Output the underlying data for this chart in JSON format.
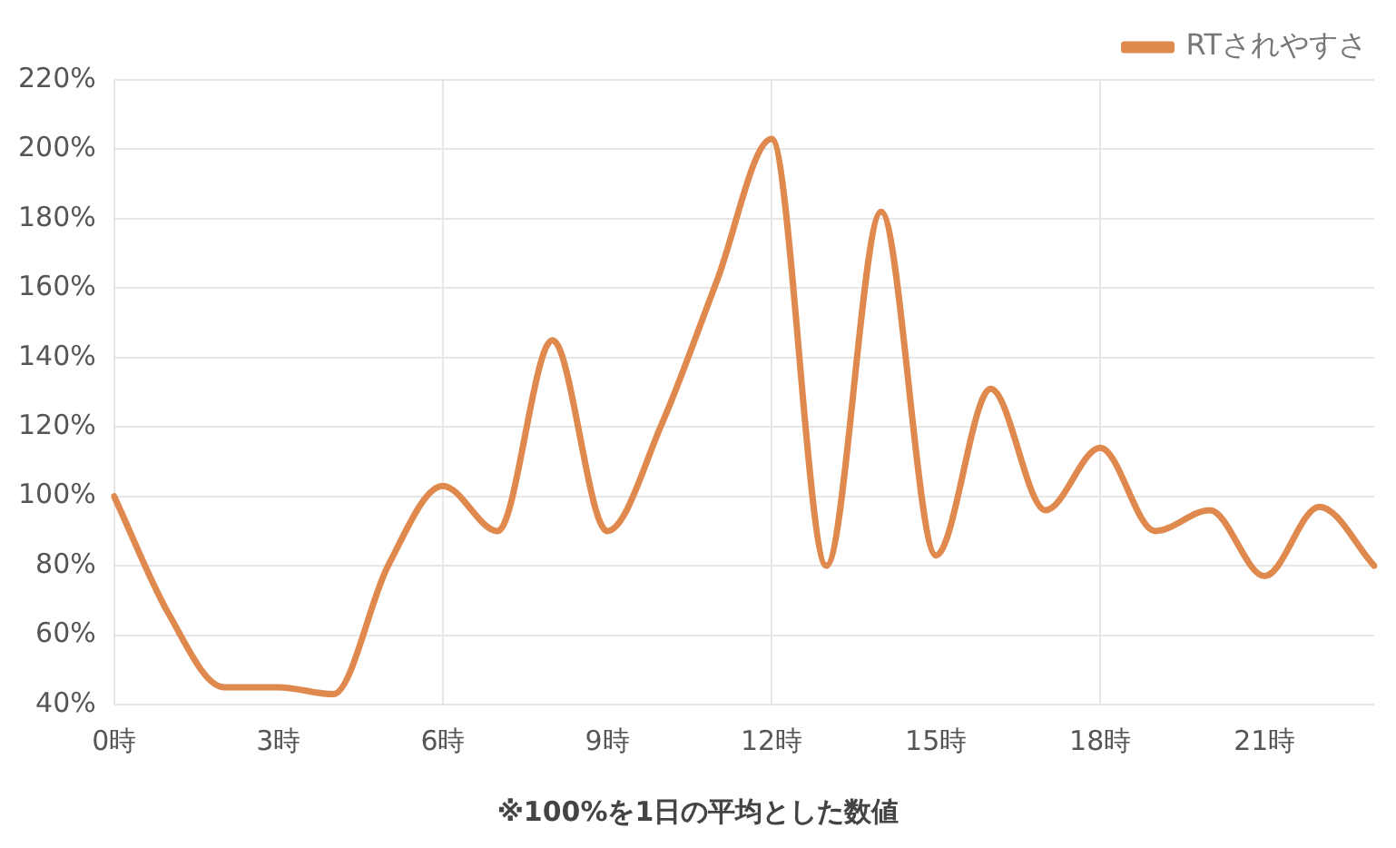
{
  "chart_data": {
    "type": "line",
    "categories": [
      "0時",
      null,
      null,
      "3時",
      null,
      null,
      "6時",
      null,
      null,
      "9時",
      null,
      null,
      "12時",
      null,
      null,
      "15時",
      null,
      null,
      "18時",
      null,
      null,
      "21時",
      null,
      null
    ],
    "series": [
      {
        "name": "RTされやすさ",
        "color": "#e0894e",
        "values": [
          100,
          66,
          45,
          45,
          43,
          80,
          103,
          90,
          145,
          90,
          121,
          162,
          203,
          80,
          182,
          83,
          131,
          96,
          114,
          90,
          96,
          77,
          97,
          80
        ]
      }
    ],
    "ylim": [
      40,
      220
    ],
    "yticks": [
      {
        "value": 40,
        "label": "40%"
      },
      {
        "value": 60,
        "label": "60%"
      },
      {
        "value": 80,
        "label": "80%"
      },
      {
        "value": 100,
        "label": "100%"
      },
      {
        "value": 120,
        "label": "120%"
      },
      {
        "value": 140,
        "label": "140%"
      },
      {
        "value": 160,
        "label": "160%"
      },
      {
        "value": 180,
        "label": "180%"
      },
      {
        "value": 200,
        "label": "200%"
      },
      {
        "value": 220,
        "label": "220%"
      }
    ],
    "grid": true,
    "legend": "top right",
    "marker": "none",
    "line_style": "solid",
    "annotations": [
      "※100%を1日の平均とした数値"
    ]
  }
}
